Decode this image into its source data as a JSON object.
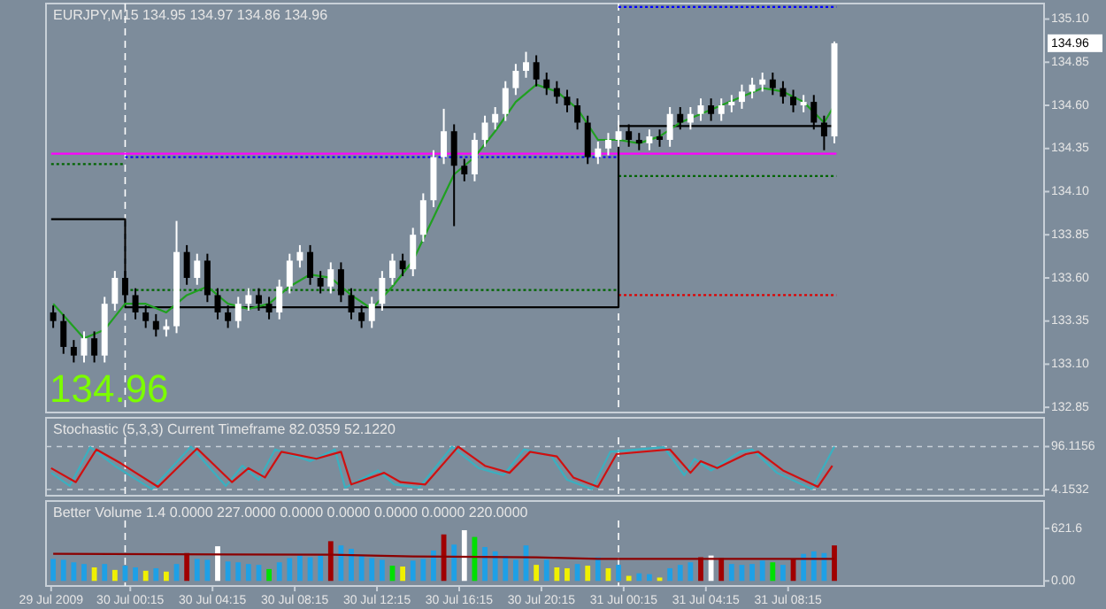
{
  "chart_data": [
    {
      "type": "candlestick",
      "title": "EURJPY,M15 134.95 134.97 134.86 134.96",
      "annotations": [
        "134.96",
        "134.96"
      ],
      "tick_labels": "y",
      "xlim": [
        "2009-07-29T20:09",
        "2009-07-31T20:42"
      ],
      "ylim": [
        132.82,
        135.19
      ],
      "yticks": [
        {
          "value": 135.1,
          "label": "135.10"
        },
        {
          "value": 134.85,
          "label": "134.85"
        },
        {
          "value": 134.6,
          "label": "134.60"
        },
        {
          "value": 134.35,
          "label": "134.35"
        },
        {
          "value": 134.1,
          "label": "134.10"
        },
        {
          "value": 133.85,
          "label": "133.85"
        },
        {
          "value": 133.6,
          "label": "133.60"
        },
        {
          "value": 133.35,
          "label": "133.35"
        },
        {
          "value": 133.1,
          "label": "133.10"
        },
        {
          "value": 132.85,
          "label": "132.85"
        }
      ],
      "ref_lines": [
        {
          "axis": "x",
          "value": "2009-07-30T00:00",
          "color": "#ffffff",
          "line_style": "dashed"
        },
        {
          "axis": "x",
          "value": "2009-07-31T00:00",
          "color": "#ffffff",
          "line_style": "dashed"
        }
      ],
      "x": [
        "2009-07-29T20:30",
        "2009-07-29T21:00",
        "2009-07-29T21:30",
        "2009-07-29T22:00",
        "2009-07-29T22:30",
        "2009-07-29T23:00",
        "2009-07-29T23:30",
        "2009-07-30T00:00",
        "2009-07-30T00:30",
        "2009-07-30T01:00",
        "2009-07-30T01:30",
        "2009-07-30T02:00",
        "2009-07-30T02:30",
        "2009-07-30T03:00",
        "2009-07-30T03:30",
        "2009-07-30T04:00",
        "2009-07-30T04:30",
        "2009-07-30T05:00",
        "2009-07-30T05:30",
        "2009-07-30T06:00",
        "2009-07-30T06:30",
        "2009-07-30T07:00",
        "2009-07-30T07:30",
        "2009-07-30T08:00",
        "2009-07-30T08:30",
        "2009-07-30T09:00",
        "2009-07-30T09:30",
        "2009-07-30T10:00",
        "2009-07-30T10:30",
        "2009-07-30T11:00",
        "2009-07-30T11:30",
        "2009-07-30T12:00",
        "2009-07-30T12:30",
        "2009-07-30T13:00",
        "2009-07-30T13:30",
        "2009-07-30T14:00",
        "2009-07-30T14:30",
        "2009-07-30T15:00",
        "2009-07-30T15:30",
        "2009-07-30T16:00",
        "2009-07-30T16:30",
        "2009-07-30T17:00",
        "2009-07-30T17:30",
        "2009-07-30T18:00",
        "2009-07-30T18:30",
        "2009-07-30T19:00",
        "2009-07-30T19:30",
        "2009-07-30T20:00",
        "2009-07-30T20:30",
        "2009-07-30T21:00",
        "2009-07-30T21:30",
        "2009-07-30T22:00",
        "2009-07-30T22:30",
        "2009-07-30T23:00",
        "2009-07-30T23:30",
        "2009-07-31T00:00",
        "2009-07-31T00:30",
        "2009-07-31T01:00",
        "2009-07-31T01:30",
        "2009-07-31T02:00",
        "2009-07-31T02:30",
        "2009-07-31T03:00",
        "2009-07-31T03:30",
        "2009-07-31T04:00",
        "2009-07-31T04:30",
        "2009-07-31T05:00",
        "2009-07-31T05:30",
        "2009-07-31T06:00",
        "2009-07-31T06:30",
        "2009-07-31T07:00",
        "2009-07-31T07:30",
        "2009-07-31T08:00",
        "2009-07-31T08:30",
        "2009-07-31T09:00",
        "2009-07-31T09:30",
        "2009-07-31T10:00",
        "2009-07-31T10:30"
      ],
      "ohlc": [
        [
          133.4,
          133.44,
          133.31,
          133.35
        ],
        [
          133.35,
          133.39,
          133.16,
          133.2
        ],
        [
          133.2,
          133.24,
          133.11,
          133.15
        ],
        [
          133.15,
          133.29,
          133.11,
          133.25
        ],
        [
          133.25,
          133.29,
          133.11,
          133.15
        ],
        [
          133.15,
          133.49,
          133.11,
          133.45
        ],
        [
          133.45,
          133.64,
          133.41,
          133.6
        ],
        [
          133.6,
          133.64,
          133.46,
          133.5
        ],
        [
          133.5,
          133.54,
          133.36,
          133.4
        ],
        [
          133.4,
          133.44,
          133.31,
          133.35
        ],
        [
          133.35,
          133.39,
          133.26,
          133.3
        ],
        [
          133.3,
          133.36,
          133.26,
          133.32
        ],
        [
          133.32,
          133.93,
          133.28,
          133.75
        ],
        [
          133.75,
          133.79,
          133.56,
          133.6
        ],
        [
          133.6,
          133.74,
          133.56,
          133.7
        ],
        [
          133.7,
          133.74,
          133.46,
          133.5
        ],
        [
          133.5,
          133.54,
          133.36,
          133.4
        ],
        [
          133.4,
          133.44,
          133.31,
          133.35
        ],
        [
          133.35,
          133.49,
          133.31,
          133.45
        ],
        [
          133.45,
          133.54,
          133.41,
          133.5
        ],
        [
          133.5,
          133.54,
          133.41,
          133.45
        ],
        [
          133.45,
          133.49,
          133.36,
          133.4
        ],
        [
          133.4,
          133.59,
          133.36,
          133.55
        ],
        [
          133.55,
          133.74,
          133.51,
          133.7
        ],
        [
          133.7,
          133.79,
          133.66,
          133.75
        ],
        [
          133.75,
          133.79,
          133.56,
          133.6
        ],
        [
          133.6,
          133.64,
          133.51,
          133.55
        ],
        [
          133.55,
          133.69,
          133.51,
          133.65
        ],
        [
          133.65,
          133.69,
          133.46,
          133.5
        ],
        [
          133.5,
          133.54,
          133.36,
          133.4
        ],
        [
          133.4,
          133.44,
          133.31,
          133.35
        ],
        [
          133.35,
          133.49,
          133.31,
          133.45
        ],
        [
          133.45,
          133.64,
          133.41,
          133.6
        ],
        [
          133.6,
          133.74,
          133.56,
          133.7
        ],
        [
          133.7,
          133.74,
          133.61,
          133.65
        ],
        [
          133.65,
          133.89,
          133.61,
          133.85
        ],
        [
          133.85,
          134.09,
          133.81,
          134.05
        ],
        [
          134.05,
          134.34,
          134.01,
          134.3
        ],
        [
          134.3,
          134.58,
          134.26,
          134.45
        ],
        [
          134.45,
          134.49,
          133.9,
          134.25
        ],
        [
          134.25,
          134.29,
          134.16,
          134.2
        ],
        [
          134.2,
          134.44,
          134.16,
          134.4
        ],
        [
          134.4,
          134.54,
          134.36,
          134.5
        ],
        [
          134.5,
          134.59,
          134.46,
          134.55
        ],
        [
          134.55,
          134.74,
          134.51,
          134.7
        ],
        [
          134.7,
          134.84,
          134.66,
          134.8
        ],
        [
          134.8,
          134.91,
          134.76,
          134.85
        ],
        [
          134.85,
          134.89,
          134.71,
          134.75
        ],
        [
          134.75,
          134.79,
          134.66,
          134.7
        ],
        [
          134.7,
          134.74,
          134.61,
          134.65
        ],
        [
          134.65,
          134.69,
          134.56,
          134.6
        ],
        [
          134.6,
          134.64,
          134.46,
          134.5
        ],
        [
          134.5,
          134.54,
          134.26,
          134.3
        ],
        [
          134.3,
          134.39,
          134.26,
          134.35
        ],
        [
          134.35,
          134.44,
          134.31,
          134.4
        ],
        [
          134.4,
          134.51,
          134.36,
          134.45
        ],
        [
          134.45,
          134.49,
          134.36,
          134.4
        ],
        [
          134.4,
          134.44,
          134.34,
          134.38
        ],
        [
          134.38,
          134.46,
          134.34,
          134.42
        ],
        [
          134.42,
          134.46,
          134.36,
          134.4
        ],
        [
          134.4,
          134.59,
          134.36,
          134.55
        ],
        [
          134.55,
          134.59,
          134.46,
          134.5
        ],
        [
          134.5,
          134.59,
          134.46,
          134.55
        ],
        [
          134.55,
          134.64,
          134.51,
          134.6
        ],
        [
          134.6,
          134.64,
          134.51,
          134.55
        ],
        [
          134.55,
          134.64,
          134.51,
          134.6
        ],
        [
          134.6,
          134.66,
          134.56,
          134.62
        ],
        [
          134.62,
          134.72,
          134.58,
          134.68
        ],
        [
          134.68,
          134.76,
          134.64,
          134.72
        ],
        [
          134.72,
          134.79,
          134.68,
          134.75
        ],
        [
          134.75,
          134.79,
          134.66,
          134.7
        ],
        [
          134.7,
          134.74,
          134.61,
          134.65
        ],
        [
          134.65,
          134.69,
          134.56,
          134.6
        ],
        [
          134.6,
          134.66,
          134.56,
          134.62
        ],
        [
          134.62,
          134.66,
          134.46,
          134.5
        ],
        [
          134.5,
          134.54,
          134.34,
          134.42
        ],
        [
          134.42,
          134.97,
          134.38,
          134.96
        ]
      ],
      "series": [
        {
          "type": "line",
          "color": "#ff00ff",
          "x": [
            "2009-07-29T20:24",
            "2009-07-31T10:36"
          ],
          "values": [
            134.32,
            134.32
          ]
        },
        {
          "type": "line",
          "color": "#0000ff",
          "line_style": "dotted",
          "x": [
            "2009-07-30T00:00",
            "2009-07-31T00:00"
          ],
          "values": [
            134.3,
            134.3
          ]
        },
        {
          "type": "line",
          "color": "#0000ff",
          "line_style": "dotted",
          "x": [
            "2009-07-31T00:00",
            "2009-07-31T10:36"
          ],
          "values": [
            135.17,
            135.17
          ]
        },
        {
          "type": "line",
          "color": "#006400",
          "line_style": "dotted",
          "x": [
            "2009-07-29T20:24",
            "2009-07-30T00:00"
          ],
          "values": [
            134.26,
            134.26
          ]
        },
        {
          "type": "line",
          "color": "#006400",
          "line_style": "dotted",
          "x": [
            "2009-07-30T00:00",
            "2009-07-31T00:00"
          ],
          "values": [
            133.53,
            133.53
          ]
        },
        {
          "type": "line",
          "color": "#006400",
          "line_style": "dotted",
          "x": [
            "2009-07-31T00:00",
            "2009-07-31T10:36"
          ],
          "values": [
            134.19,
            134.19
          ]
        },
        {
          "type": "line",
          "color": "#e00000",
          "line_style": "dotted",
          "x": [
            "2009-07-31T00:00",
            "2009-07-31T10:36"
          ],
          "values": [
            133.5,
            133.5
          ]
        },
        {
          "type": "line",
          "color": "#000000",
          "x": [
            "2009-07-29T20:24",
            "2009-07-30T00:00",
            "2009-07-30T00:00",
            "2009-07-31T00:00",
            "2009-07-31T00:00",
            "2009-07-31T10:36"
          ],
          "values": [
            133.94,
            133.94,
            133.43,
            133.43,
            134.48,
            134.48
          ]
        },
        {
          "type": "line",
          "color": "#20a020",
          "x": [
            "2009-07-29T20:30",
            "2009-07-29T22:00",
            "2009-07-29T23:00",
            "2009-07-30T00:00",
            "2009-07-30T01:00",
            "2009-07-30T02:00",
            "2009-07-30T03:00",
            "2009-07-30T04:00",
            "2009-07-30T05:00",
            "2009-07-30T06:00",
            "2009-07-30T07:00",
            "2009-07-30T08:00",
            "2009-07-30T09:00",
            "2009-07-30T10:00",
            "2009-07-30T11:00",
            "2009-07-30T12:00",
            "2009-07-30T13:00",
            "2009-07-30T14:00",
            "2009-07-30T15:00",
            "2009-07-30T16:00",
            "2009-07-30T17:00",
            "2009-07-30T18:00",
            "2009-07-30T19:00",
            "2009-07-30T20:00",
            "2009-07-30T21:00",
            "2009-07-30T22:00",
            "2009-07-30T23:00",
            "2009-07-31T00:00",
            "2009-07-31T01:00",
            "2009-07-31T02:00",
            "2009-07-31T03:00",
            "2009-07-31T04:00",
            "2009-07-31T05:00",
            "2009-07-31T06:00",
            "2009-07-31T07:00",
            "2009-07-31T08:00",
            "2009-07-31T09:00",
            "2009-07-31T10:00",
            "2009-07-31T10:30"
          ],
          "values": [
            133.45,
            133.25,
            133.3,
            133.45,
            133.45,
            133.4,
            133.5,
            133.55,
            133.45,
            133.42,
            133.45,
            133.55,
            133.62,
            133.6,
            133.5,
            133.42,
            133.55,
            133.7,
            133.95,
            134.2,
            134.3,
            134.45,
            134.62,
            134.72,
            134.68,
            134.58,
            134.4,
            134.4,
            134.38,
            134.42,
            134.5,
            134.55,
            134.6,
            134.65,
            134.7,
            134.68,
            134.62,
            134.5,
            134.6
          ]
        }
      ]
    },
    {
      "type": "line",
      "title": "Stochastic (5,3,3) Current Timeframe 82.0359 52.1220",
      "tick_labels": "y",
      "grid": "y",
      "xlim": [
        "2009-07-29T20:09",
        "2009-07-31T20:42"
      ],
      "ylim": [
        -9,
        116
      ],
      "yticks": [
        96.1156,
        4.1532
      ],
      "ref_lines": [
        {
          "axis": "x",
          "value": "2009-07-30T00:00",
          "color": "#ffffff",
          "line_style": "dashed"
        },
        {
          "axis": "x",
          "value": "2009-07-31T00:00",
          "color": "#ffffff",
          "line_style": "dashed"
        }
      ],
      "series": [
        {
          "color": "#3ab0c0",
          "x": [
            "2009-07-29T20:24",
            "2009-07-29T21:18",
            "2009-07-29T22:18",
            "2009-07-29T23:30",
            "2009-07-30T01:18",
            "2009-07-30T03:12",
            "2009-07-30T04:54",
            "2009-07-30T05:42",
            "2009-07-30T06:30",
            "2009-07-30T07:18",
            "2009-07-30T09:00",
            "2009-07-30T10:12",
            "2009-07-30T10:42",
            "2009-07-30T12:18",
            "2009-07-30T13:06",
            "2009-07-30T14:18",
            "2009-07-30T15:54",
            "2009-07-30T17:12",
            "2009-07-30T18:24",
            "2009-07-30T19:24",
            "2009-07-30T20:42",
            "2009-07-30T21:30",
            "2009-07-30T22:42",
            "2009-07-30T23:36",
            "2009-07-31T02:12",
            "2009-07-31T03:12",
            "2009-07-31T03:42",
            "2009-07-31T04:30",
            "2009-07-31T05:54",
            "2009-07-31T06:30",
            "2009-07-31T07:42",
            "2009-07-31T09:24",
            "2009-07-31T10:30"
          ],
          "values": [
            40,
            12,
            95,
            55,
            5,
            96,
            12,
            55,
            25,
            90,
            65,
            90,
            8,
            45,
            15,
            8,
            96,
            50,
            35,
            90,
            78,
            25,
            5,
            85,
            95,
            35,
            70,
            45,
            85,
            90,
            40,
            5,
            96
          ]
        },
        {
          "color": "#d01010",
          "x": [
            "2009-07-29T20:24",
            "2009-07-29T21:36",
            "2009-07-29T22:36",
            "2009-07-29T23:48",
            "2009-07-30T01:36",
            "2009-07-30T03:30",
            "2009-07-30T05:12",
            "2009-07-30T06:00",
            "2009-07-30T06:48",
            "2009-07-30T07:36",
            "2009-07-30T09:18",
            "2009-07-30T10:30",
            "2009-07-30T11:00",
            "2009-07-30T12:36",
            "2009-07-30T13:24",
            "2009-07-30T14:36",
            "2009-07-30T16:12",
            "2009-07-30T17:30",
            "2009-07-30T18:42",
            "2009-07-30T19:42",
            "2009-07-30T21:00",
            "2009-07-30T21:48",
            "2009-07-30T23:00",
            "2009-07-30T23:54",
            "2009-07-31T02:30",
            "2009-07-31T03:30",
            "2009-07-31T04:00",
            "2009-07-31T04:48",
            "2009-07-31T06:12",
            "2009-07-31T06:48",
            "2009-07-31T08:00",
            "2009-07-31T09:42",
            "2009-07-31T10:24"
          ],
          "values": [
            50,
            20,
            90,
            60,
            10,
            92,
            20,
            50,
            30,
            85,
            70,
            85,
            15,
            40,
            20,
            15,
            96,
            55,
            40,
            85,
            75,
            30,
            10,
            80,
            90,
            40,
            65,
            50,
            80,
            85,
            45,
            10,
            55
          ]
        }
      ]
    },
    {
      "type": "bar",
      "title": "Better Volume 1.4 0.0000 227.0000 0.0000 0.0000 0.0000 0.0000 220.0000",
      "xlim": [
        "2009-07-29T20:09",
        "2009-07-31T20:42"
      ],
      "ylim": [
        -60,
        715
      ],
      "yticks": [
        621.6,
        {
          "value": 0,
          "label": "0.00"
        }
      ],
      "xticks": [
        {
          "value": "2009-07-29T20:24",
          "label": "29 Jul 2009"
        },
        {
          "value": "2009-07-30T00:15",
          "label": "30 Jul 00:15"
        },
        {
          "value": "2009-07-30T04:15",
          "label": "30 Jul 04:15"
        },
        {
          "value": "2009-07-30T08:15",
          "label": "30 Jul 08:15"
        },
        {
          "value": "2009-07-30T12:15",
          "label": "30 Jul 12:15"
        },
        {
          "value": "2009-07-30T16:15",
          "label": "30 Jul 16:15"
        },
        {
          "value": "2009-07-30T20:15",
          "label": "30 Jul 20:15"
        },
        {
          "value": "2009-07-31T00:15",
          "label": "31 Jul 00:15"
        },
        {
          "value": "2009-07-31T04:15",
          "label": "31 Jul 04:15"
        },
        {
          "value": "2009-07-31T08:15",
          "label": "31 Jul 08:15"
        }
      ],
      "ref_lines": [
        {
          "axis": "x",
          "value": "2009-07-30T00:00",
          "color": "#ffffff",
          "line_style": "dashed"
        },
        {
          "axis": "x",
          "value": "2009-07-31T00:00",
          "color": "#ffffff",
          "line_style": "dashed"
        }
      ],
      "x": [
        "2009-07-29T20:30",
        "2009-07-29T21:00",
        "2009-07-29T21:30",
        "2009-07-29T22:00",
        "2009-07-29T22:30",
        "2009-07-29T23:00",
        "2009-07-29T23:30",
        "2009-07-30T00:00",
        "2009-07-30T00:30",
        "2009-07-30T01:00",
        "2009-07-30T01:30",
        "2009-07-30T02:00",
        "2009-07-30T02:30",
        "2009-07-30T03:00",
        "2009-07-30T03:30",
        "2009-07-30T04:00",
        "2009-07-30T04:30",
        "2009-07-30T05:00",
        "2009-07-30T05:30",
        "2009-07-30T06:00",
        "2009-07-30T06:30",
        "2009-07-30T07:00",
        "2009-07-30T07:30",
        "2009-07-30T08:00",
        "2009-07-30T08:30",
        "2009-07-30T09:00",
        "2009-07-30T09:30",
        "2009-07-30T10:00",
        "2009-07-30T10:30",
        "2009-07-30T11:00",
        "2009-07-30T11:30",
        "2009-07-30T12:00",
        "2009-07-30T12:30",
        "2009-07-30T13:00",
        "2009-07-30T13:30",
        "2009-07-30T14:00",
        "2009-07-30T14:30",
        "2009-07-30T15:00",
        "2009-07-30T15:30",
        "2009-07-30T16:00",
        "2009-07-30T16:30",
        "2009-07-30T17:00",
        "2009-07-30T17:30",
        "2009-07-30T18:00",
        "2009-07-30T18:30",
        "2009-07-30T19:00",
        "2009-07-30T19:30",
        "2009-07-30T20:00",
        "2009-07-30T20:30",
        "2009-07-30T21:00",
        "2009-07-30T21:30",
        "2009-07-30T22:00",
        "2009-07-30T22:30",
        "2009-07-30T23:00",
        "2009-07-30T23:30",
        "2009-07-31T00:00",
        "2009-07-31T00:30",
        "2009-07-31T01:00",
        "2009-07-31T01:30",
        "2009-07-31T02:00",
        "2009-07-31T02:30",
        "2009-07-31T03:00",
        "2009-07-31T03:30",
        "2009-07-31T04:00",
        "2009-07-31T04:30",
        "2009-07-31T05:00",
        "2009-07-31T05:30",
        "2009-07-31T06:00",
        "2009-07-31T06:30",
        "2009-07-31T07:00",
        "2009-07-31T07:30",
        "2009-07-31T08:00",
        "2009-07-31T08:30",
        "2009-07-31T09:00",
        "2009-07-31T09:30",
        "2009-07-31T10:00",
        "2009-07-31T10:30"
      ],
      "values": [
        260,
        250,
        220,
        200,
        160,
        200,
        130,
        180,
        160,
        120,
        150,
        110,
        200,
        330,
        260,
        250,
        410,
        230,
        220,
        200,
        190,
        140,
        220,
        270,
        300,
        280,
        300,
        470,
        420,
        380,
        300,
        270,
        250,
        180,
        170,
        240,
        260,
        360,
        550,
        430,
        600,
        520,
        400,
        350,
        300,
        250,
        420,
        190,
        250,
        160,
        150,
        200,
        180,
        280,
        150,
        190,
        60,
        90,
        80,
        40,
        150,
        190,
        220,
        280,
        300,
        270,
        200,
        190,
        200,
        240,
        220,
        190,
        260,
        320,
        350,
        330,
        420
      ],
      "colors": [
        "#1ea0e6",
        "#1ea0e6",
        "#1ea0e6",
        "#1ea0e6",
        "#f0f000",
        "#1ea0e6",
        "#f0f000",
        "#1ea0e6",
        "#1ea0e6",
        "#f0f000",
        "#1ea0e6",
        "#f0f000",
        "#1ea0e6",
        "#a00000",
        "#1ea0e6",
        "#1ea0e6",
        "#ffffff",
        "#1ea0e6",
        "#1ea0e6",
        "#1ea0e6",
        "#1ea0e6",
        "#00e000",
        "#1ea0e6",
        "#1ea0e6",
        "#1ea0e6",
        "#1ea0e6",
        "#1ea0e6",
        "#a00000",
        "#1ea0e6",
        "#1ea0e6",
        "#1ea0e6",
        "#1ea0e6",
        "#1ea0e6",
        "#00e000",
        "#f0f000",
        "#1ea0e6",
        "#1ea0e6",
        "#1ea0e6",
        "#a00000",
        "#1ea0e6",
        "#ffffff",
        "#00e000",
        "#1ea0e6",
        "#1ea0e6",
        "#1ea0e6",
        "#1ea0e6",
        "#1ea0e6",
        "#f0f000",
        "#1ea0e6",
        "#f0f000",
        "#f0f000",
        "#1ea0e6",
        "#f0f000",
        "#1ea0e6",
        "#f0f000",
        "#1ea0e6",
        "#f0f000",
        "#1ea0e6",
        "#1ea0e6",
        "#f0f000",
        "#1ea0e6",
        "#1ea0e6",
        "#1ea0e6",
        "#a00000",
        "#ffffff",
        "#a00000",
        "#1ea0e6",
        "#1ea0e6",
        "#1ea0e6",
        "#1ea0e6",
        "#00e000",
        "#1ea0e6",
        "#a00000",
        "#1ea0e6",
        "#1ea0e6",
        "#1ea0e6",
        "#a00000"
      ],
      "series": [
        {
          "type": "line",
          "color": "#8b0000",
          "x": [
            "2009-07-29T20:30",
            "2009-07-30T10:00",
            "2009-07-30T14:00",
            "2009-07-30T20:00",
            "2009-07-30T23:00",
            "2009-07-31T10:30"
          ],
          "values": [
            320,
            310,
            290,
            280,
            260,
            260
          ]
        }
      ]
    }
  ]
}
